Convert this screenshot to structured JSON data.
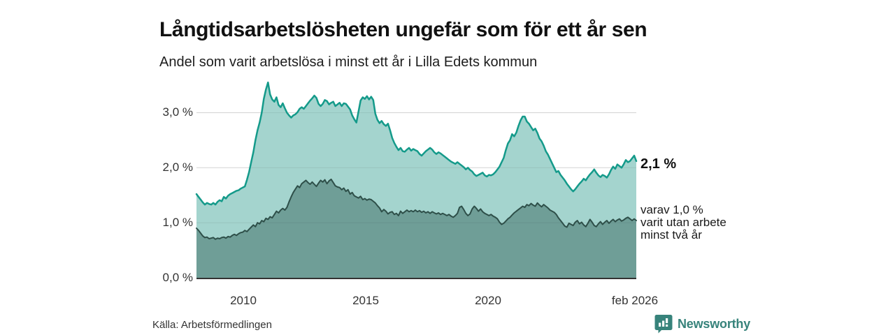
{
  "title": "Långtidsarbetslösheten ungefär som för ett år sen",
  "subtitle": "Andel som varit arbetslösa i minst ett år i Lilla Edets kommun",
  "source": "Källa: Arbetsförmedlingen",
  "branding": {
    "name": "Newsworthy",
    "color": "#37837b"
  },
  "annotations": {
    "total_end_label": "2,1 %",
    "secondary_end_line1": "varav 1,0 %",
    "secondary_end_line2": "varit utan arbete",
    "secondary_end_line3": "minst två år"
  },
  "chart_data": {
    "type": "area",
    "title": "Långtidsarbetslösheten ungefär som för ett år sen",
    "subtitle": "Andel som varit arbetslösa i minst ett år i Lilla Edets kommun",
    "unit": "%",
    "x_start": "feb 2008",
    "x_end": "feb 2026",
    "x_tick_labels": [
      "2010",
      "2015",
      "2020",
      "feb 2026"
    ],
    "y_ticks": [
      0,
      1,
      2,
      3
    ],
    "y_tick_labels": [
      "0,0 %",
      "1,0 %",
      "2,0 %",
      "3,0 %"
    ],
    "ylim": [
      0,
      3.7
    ],
    "grid": "horizontal",
    "legend_position": "end-labels",
    "colors": {
      "grid": "#e4e4e4",
      "axis": "#333333",
      "total_fill": "#a4d4ce",
      "total_line": "#149a8a",
      "secondary_fill": "#6f9e97",
      "secondary_line": "#2e4f49"
    },
    "series": [
      {
        "name": "Andel som varit arbetslösa i minst ett år",
        "end_label": "2,1 %",
        "end_value": 2.1,
        "color_fill": "#a4d4ce",
        "color_line": "#149a8a",
        "line_width": 2.5,
        "values": [
          1.52,
          1.47,
          1.42,
          1.37,
          1.33,
          1.36,
          1.34,
          1.33,
          1.36,
          1.33,
          1.38,
          1.41,
          1.39,
          1.47,
          1.44,
          1.49,
          1.52,
          1.54,
          1.56,
          1.58,
          1.59,
          1.62,
          1.64,
          1.66,
          1.78,
          1.92,
          2.1,
          2.28,
          2.5,
          2.68,
          2.82,
          3.0,
          3.25,
          3.42,
          3.55,
          3.33,
          3.24,
          3.2,
          3.28,
          3.14,
          3.1,
          3.17,
          3.08,
          3.0,
          2.95,
          2.91,
          2.95,
          2.97,
          3.01,
          3.07,
          3.1,
          3.07,
          3.12,
          3.17,
          3.22,
          3.26,
          3.31,
          3.27,
          3.16,
          3.12,
          3.16,
          3.23,
          3.21,
          3.15,
          3.18,
          3.2,
          3.12,
          3.15,
          3.18,
          3.12,
          3.17,
          3.16,
          3.11,
          3.06,
          2.95,
          2.88,
          2.82,
          3.02,
          3.22,
          3.28,
          3.25,
          3.3,
          3.24,
          3.29,
          3.23,
          2.98,
          2.87,
          2.81,
          2.85,
          2.79,
          2.76,
          2.8,
          2.68,
          2.54,
          2.45,
          2.38,
          2.32,
          2.36,
          2.3,
          2.29,
          2.33,
          2.36,
          2.31,
          2.34,
          2.32,
          2.3,
          2.25,
          2.22,
          2.26,
          2.3,
          2.33,
          2.36,
          2.33,
          2.28,
          2.25,
          2.28,
          2.26,
          2.23,
          2.2,
          2.17,
          2.14,
          2.11,
          2.09,
          2.07,
          2.1,
          2.07,
          2.04,
          2.01,
          1.97,
          2.0,
          1.96,
          1.93,
          1.88,
          1.85,
          1.87,
          1.89,
          1.91,
          1.86,
          1.84,
          1.87,
          1.86,
          1.88,
          1.92,
          1.97,
          2.02,
          2.1,
          2.18,
          2.32,
          2.44,
          2.5,
          2.61,
          2.57,
          2.64,
          2.76,
          2.86,
          2.93,
          2.93,
          2.84,
          2.8,
          2.74,
          2.68,
          2.71,
          2.63,
          2.53,
          2.48,
          2.4,
          2.3,
          2.24,
          2.16,
          2.08,
          2.0,
          1.92,
          1.94,
          1.87,
          1.82,
          1.77,
          1.71,
          1.66,
          1.61,
          1.57,
          1.61,
          1.66,
          1.71,
          1.75,
          1.8,
          1.77,
          1.83,
          1.88,
          1.92,
          1.97,
          1.91,
          1.86,
          1.83,
          1.87,
          1.85,
          1.82,
          1.88,
          1.96,
          2.02,
          1.98,
          2.06,
          2.03,
          2.0,
          2.06,
          2.14,
          2.1,
          2.12,
          2.17,
          2.22,
          2.12
        ]
      },
      {
        "name": "varav varit utan arbete minst två år",
        "end_label": "varav 1,0 % varit utan arbete minst två år",
        "end_value": 1.0,
        "color_fill": "#6f9e97",
        "color_line": "#2e4f49",
        "line_width": 2,
        "values": [
          0.9,
          0.86,
          0.81,
          0.76,
          0.73,
          0.74,
          0.71,
          0.72,
          0.73,
          0.7,
          0.72,
          0.71,
          0.73,
          0.74,
          0.72,
          0.75,
          0.74,
          0.77,
          0.79,
          0.77,
          0.8,
          0.82,
          0.83,
          0.86,
          0.84,
          0.88,
          0.92,
          0.96,
          0.93,
          1.0,
          0.98,
          1.04,
          1.02,
          1.08,
          1.06,
          1.11,
          1.09,
          1.15,
          1.21,
          1.18,
          1.23,
          1.26,
          1.23,
          1.28,
          1.38,
          1.47,
          1.55,
          1.61,
          1.67,
          1.64,
          1.71,
          1.74,
          1.77,
          1.73,
          1.7,
          1.74,
          1.7,
          1.66,
          1.72,
          1.77,
          1.74,
          1.78,
          1.71,
          1.76,
          1.79,
          1.73,
          1.67,
          1.65,
          1.64,
          1.6,
          1.63,
          1.57,
          1.6,
          1.52,
          1.55,
          1.49,
          1.47,
          1.45,
          1.48,
          1.42,
          1.44,
          1.41,
          1.43,
          1.42,
          1.39,
          1.36,
          1.31,
          1.27,
          1.2,
          1.24,
          1.21,
          1.16,
          1.19,
          1.2,
          1.15,
          1.17,
          1.13,
          1.21,
          1.17,
          1.2,
          1.23,
          1.2,
          1.22,
          1.2,
          1.23,
          1.2,
          1.22,
          1.19,
          1.21,
          1.18,
          1.2,
          1.17,
          1.2,
          1.18,
          1.16,
          1.18,
          1.15,
          1.17,
          1.15,
          1.13,
          1.15,
          1.12,
          1.1,
          1.13,
          1.17,
          1.28,
          1.3,
          1.24,
          1.17,
          1.13,
          1.16,
          1.25,
          1.3,
          1.26,
          1.21,
          1.25,
          1.2,
          1.17,
          1.15,
          1.13,
          1.15,
          1.12,
          1.1,
          1.07,
          1.01,
          0.97,
          0.99,
          1.03,
          1.07,
          1.1,
          1.14,
          1.18,
          1.21,
          1.24,
          1.27,
          1.3,
          1.28,
          1.33,
          1.31,
          1.35,
          1.32,
          1.3,
          1.36,
          1.32,
          1.29,
          1.33,
          1.3,
          1.27,
          1.23,
          1.21,
          1.19,
          1.15,
          1.09,
          1.04,
          0.99,
          0.94,
          0.92,
          0.99,
          0.97,
          0.95,
          1.01,
          1.04,
          0.98,
          1.01,
          0.96,
          0.93,
          0.99,
          1.06,
          1.01,
          0.95,
          0.93,
          0.98,
          1.02,
          0.97,
          1.01,
          1.04,
          0.99,
          1.03,
          1.06,
          1.02,
          1.05,
          1.07,
          1.03,
          1.05,
          1.08,
          1.1,
          1.07,
          1.04,
          1.07,
          1.04
        ]
      }
    ]
  }
}
